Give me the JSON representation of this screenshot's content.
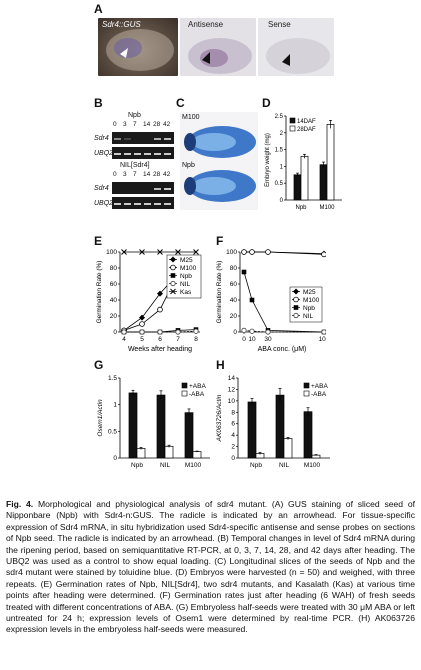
{
  "panels": {
    "A": {
      "letter": "A",
      "titles": [
        "Sdr4::GUS",
        "Antisense",
        "Sense"
      ]
    },
    "B": {
      "letter": "B",
      "group1": "Npb",
      "group2": "NIL[Sdr4]",
      "lanes": [
        "0",
        "3",
        "7",
        "14",
        "28",
        "42"
      ],
      "rows": [
        "Sdr4",
        "UBQ2"
      ]
    },
    "C": {
      "letter": "C",
      "labels": [
        "M100",
        "Npb"
      ]
    }
  },
  "caption": {
    "fig": "Fig. 4.",
    "text": "Morphological and physiological analysis of sdr4 mutant. (A) GUS staining of sliced seed of Nipponbare (Npb) with Sdr4-n:GUS. The radicle is indicated by an arrowhead. For tissue-specific expression of Sdr4 mRNA, in situ hybridization used Sdr4-specific antisense and sense probes on sections of Npb seed. The radicle is indicated by an arrowhead. (B) Temporal changes in level of Sdr4 mRNA during the ripening period, based on semiquantitative RT-PCR, at 0, 3, 7, 14, 28, and 42 days after heading. The UBQ2 was used as a control to show equal loading. (C) Longitudinal slices of the seeds of Npb and the sdr4 mutant were stained by toluidine blue. (D) Embryos were harvested (n = 50) and weighed, with three repeats. (E) Germination rates of Npb, NIL[Sdr4], two sdr4 mutants, and Kasalath (Kas) at various time points after heading were determined. (F) Germination rates just after heading (6 WAH) of fresh seeds treated with different concentrations of ABA. (G) Embryoless half-seeds were treated with 30 μM ABA or left untreated for 24 h; expression levels of Osem1 were determined by real-time PCR. (H) AK063726 expression levels in the embryoless half-seeds were measured."
  },
  "chart_data": [
    {
      "panel": "D",
      "type": "bar",
      "categories": [
        "Npb",
        "M100"
      ],
      "series": [
        {
          "name": "14DAF",
          "values": [
            0.75,
            1.05
          ],
          "color": "#111111"
        },
        {
          "name": "28DAF",
          "values": [
            1.3,
            2.25
          ],
          "color": "#ffffff"
        }
      ],
      "errors": [
        [
          0.05,
          0.08
        ],
        [
          0.06,
          0.12
        ]
      ],
      "ylabel": "Embryo weight (mg)",
      "ylim": [
        0,
        2.5
      ],
      "yticks": [
        "0",
        "0.5",
        "1",
        "1.5",
        "2",
        "2.5"
      ],
      "legend": "top-left"
    },
    {
      "panel": "E",
      "type": "line",
      "x": [
        4,
        5,
        6,
        7,
        8
      ],
      "series": [
        {
          "name": "M25",
          "values": [
            2,
            18,
            48,
            73,
            80
          ],
          "marker": "diamond"
        },
        {
          "name": "M100",
          "values": [
            2,
            10,
            28,
            73,
            83
          ],
          "marker": "circle-open"
        },
        {
          "name": "Npb",
          "values": [
            0,
            0,
            0,
            2,
            3
          ],
          "marker": "square"
        },
        {
          "name": "NIL",
          "values": [
            0,
            0,
            0,
            0,
            1
          ],
          "marker": "circle-open-dash"
        },
        {
          "name": "Kas",
          "values": [
            100,
            100,
            100,
            100,
            100
          ],
          "marker": "cross"
        }
      ],
      "xlabel": "Weeks after heading",
      "ylabel": "Germination Rate (%)",
      "xlim": [
        4,
        8
      ],
      "ylim": [
        0,
        100
      ],
      "yticks": [
        "0",
        "20",
        "40",
        "60",
        "80",
        "100"
      ]
    },
    {
      "panel": "F",
      "type": "line",
      "x": [
        "0",
        "10",
        "30",
        "100"
      ],
      "x_numeric": [
        0,
        10,
        30,
        100
      ],
      "series": [
        {
          "name": "M25",
          "values": [
            100,
            100,
            100,
            98
          ],
          "marker": "diamond"
        },
        {
          "name": "M100",
          "values": [
            100,
            100,
            100,
            97
          ],
          "marker": "circle-open"
        },
        {
          "name": "Npb",
          "values": [
            75,
            40,
            2,
            0
          ],
          "marker": "square"
        },
        {
          "name": "NIL",
          "values": [
            2,
            1,
            0,
            0
          ],
          "marker": "circle-open-dash"
        }
      ],
      "xlabel": "ABA conc. (μM)",
      "ylabel": "Germination Rate (%)",
      "ylim": [
        0,
        100
      ],
      "yticks": [
        "0",
        "20",
        "40",
        "60",
        "80",
        "100"
      ]
    },
    {
      "panel": "G",
      "type": "bar",
      "categories": [
        "Npb",
        "NIL",
        "M100"
      ],
      "series": [
        {
          "name": "+ABA",
          "values": [
            1.22,
            1.18,
            0.85
          ],
          "color": "#111111"
        },
        {
          "name": "-ABA",
          "values": [
            0.18,
            0.22,
            0.12
          ],
          "color": "#ffffff"
        }
      ],
      "errors": [
        [
          0.05,
          0.08,
          0.07
        ],
        [
          0.02,
          0.02,
          0.01
        ]
      ],
      "ylabel": "Osem1/Actin",
      "ylim": [
        0,
        1.5
      ],
      "yticks": [
        "0",
        "0.5",
        "1",
        "1.5"
      ],
      "legend": "top-right"
    },
    {
      "panel": "H",
      "type": "bar",
      "categories": [
        "Npb",
        "NIL",
        "M100"
      ],
      "series": [
        {
          "name": "+ABA",
          "values": [
            9.8,
            11.0,
            8.1
          ],
          "color": "#111111"
        },
        {
          "name": "-ABA",
          "values": [
            0.8,
            3.4,
            0.5
          ],
          "color": "#ffffff"
        }
      ],
      "errors": [
        [
          0.6,
          1.2,
          0.7
        ],
        [
          0.2,
          0.2,
          0.1
        ]
      ],
      "ylabel": "AK063726/Actin",
      "ylim": [
        0,
        14
      ],
      "yticks": [
        "0",
        "2",
        "4",
        "6",
        "8",
        "10",
        "12",
        "14"
      ],
      "legend": "top-right"
    }
  ]
}
